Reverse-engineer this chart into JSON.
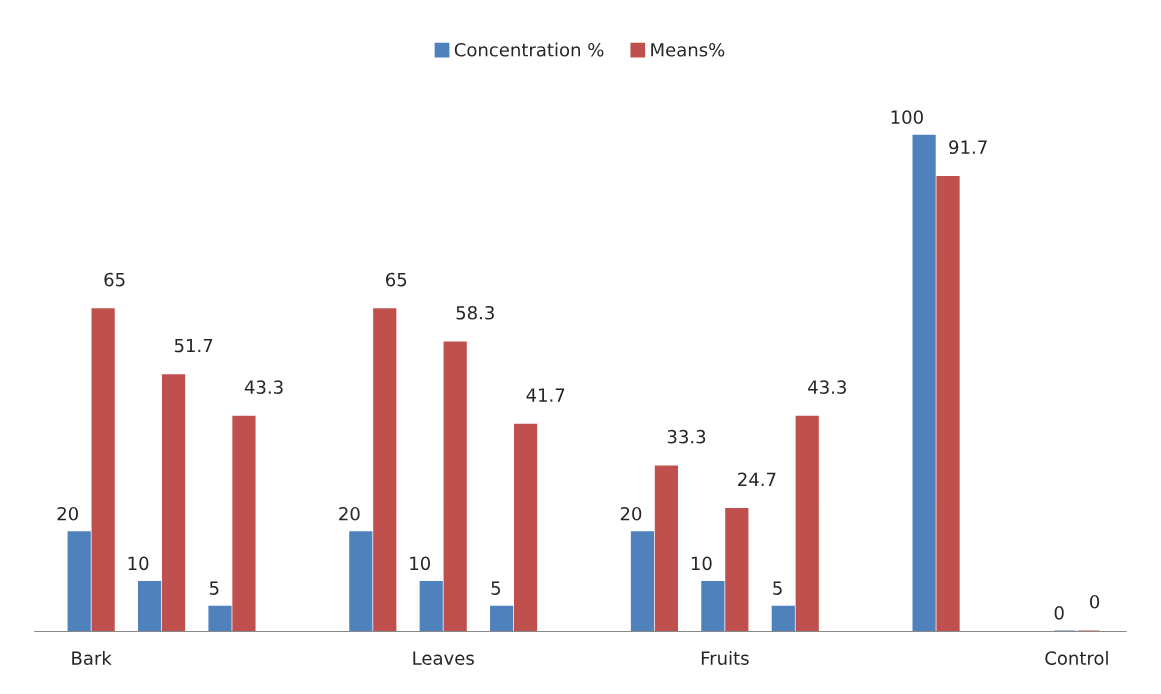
{
  "chart_data": {
    "type": "bar",
    "categories": [
      "Bark",
      null,
      null,
      null,
      null,
      "Leaves",
      null,
      null,
      null,
      "Fruits",
      null,
      null,
      null,
      null,
      "Control"
    ],
    "series": [
      {
        "name": "Concentration %",
        "color": "#4f81bd",
        "values": [
          20,
          10,
          5,
          null,
          20,
          10,
          5,
          null,
          20,
          10,
          5,
          null,
          100,
          null,
          0
        ]
      },
      {
        "name": "Means%",
        "color": "#c0504d",
        "values": [
          65,
          51.7,
          43.3,
          null,
          65,
          58.3,
          41.7,
          null,
          33.3,
          24.7,
          43.3,
          null,
          91.7,
          null,
          0
        ]
      }
    ],
    "data_labels": true,
    "legend": "top",
    "grid": false
  }
}
